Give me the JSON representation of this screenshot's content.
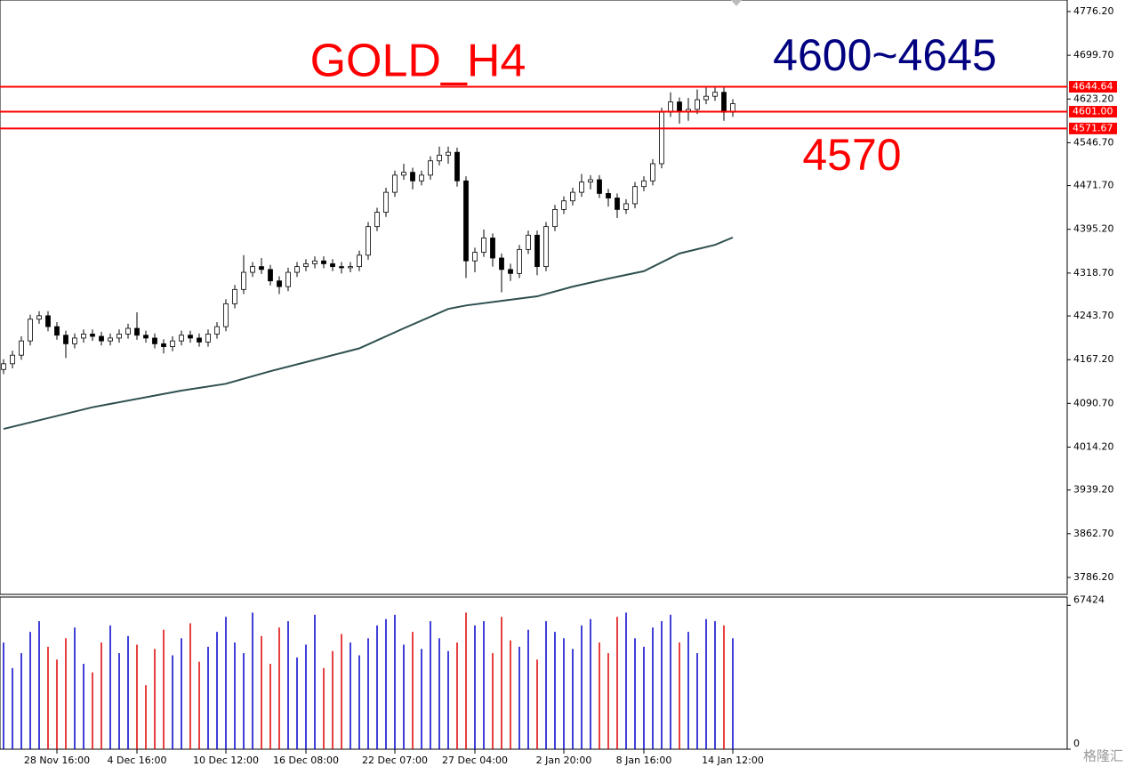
{
  "chart_data": {
    "type": "candlestick",
    "title": "GOLD_H4",
    "annotations": [
      "4600~4645",
      "4570"
    ],
    "watermark": "格隆汇",
    "categories": [
      null,
      null,
      null,
      null,
      null,
      null,
      "28 Nov 16:00",
      null,
      null,
      null,
      null,
      null,
      null,
      null,
      null,
      "4 Dec 16:00",
      null,
      null,
      null,
      null,
      null,
      null,
      null,
      null,
      null,
      "10 Dec 12:00",
      null,
      null,
      null,
      null,
      null,
      null,
      null,
      null,
      "16 Dec 08:00",
      null,
      null,
      null,
      null,
      null,
      null,
      null,
      null,
      null,
      "22 Dec 07:00",
      null,
      null,
      null,
      null,
      null,
      null,
      null,
      null,
      "27 Dec 04:00",
      null,
      null,
      null,
      null,
      null,
      null,
      null,
      null,
      null,
      "2 Jan 20:00",
      null,
      null,
      null,
      null,
      null,
      null,
      null,
      null,
      "8 Jan 16:00",
      null,
      null,
      null,
      null,
      null,
      null,
      null,
      null,
      null,
      "14 Jan 12:00"
    ],
    "open": [
      4150,
      4160,
      4175,
      4200,
      4238,
      4244,
      4225,
      4210,
      4195,
      4205,
      4212,
      4208,
      4200,
      4205,
      4212,
      4222,
      4210,
      4205,
      4195,
      4190,
      4200,
      4210,
      4205,
      4198,
      4212,
      4225,
      4265,
      4290,
      4320,
      4330,
      4325,
      4305,
      4295,
      4320,
      4330,
      4335,
      4340,
      4335,
      4330,
      4328,
      4330,
      4350,
      4400,
      4425,
      4460,
      4490,
      4495,
      4480,
      4490,
      4515,
      4525,
      4530,
      4480,
      4340,
      4355,
      4380,
      4345,
      4325,
      4318,
      4360,
      4385,
      4330,
      4400,
      4430,
      4445,
      4460,
      4478,
      4482,
      4458,
      4450,
      4430,
      4440,
      4470,
      4480,
      4510,
      4600,
      4618,
      4602,
      4605,
      4622,
      4628,
      4635,
      4600
    ],
    "high": [
      4168,
      4183,
      4208,
      4246,
      4252,
      4252,
      4233,
      4218,
      4213,
      4220,
      4220,
      4216,
      4213,
      4220,
      4230,
      4250,
      4218,
      4213,
      4203,
      4208,
      4218,
      4218,
      4213,
      4220,
      4233,
      4273,
      4298,
      4350,
      4338,
      4345,
      4333,
      4313,
      4328,
      4338,
      4343,
      4348,
      4348,
      4343,
      4338,
      4338,
      4358,
      4408,
      4433,
      4468,
      4498,
      4510,
      4503,
      4498,
      4523,
      4540,
      4540,
      4538,
      4488,
      4363,
      4395,
      4388,
      4353,
      4335,
      4368,
      4393,
      4393,
      4408,
      4438,
      4453,
      4468,
      4492,
      4490,
      4490,
      4466,
      4458,
      4448,
      4478,
      4488,
      4518,
      4608,
      4635,
      4626,
      4625,
      4640,
      4645,
      4644,
      4643,
      4623
    ],
    "low": [
      4142,
      4152,
      4167,
      4192,
      4230,
      4217,
      4202,
      4170,
      4187,
      4197,
      4200,
      4192,
      4192,
      4197,
      4204,
      4202,
      4197,
      4187,
      4178,
      4182,
      4192,
      4197,
      4190,
      4190,
      4204,
      4217,
      4257,
      4282,
      4312,
      4317,
      4297,
      4282,
      4287,
      4312,
      4322,
      4327,
      4327,
      4322,
      4318,
      4320,
      4322,
      4342,
      4392,
      4417,
      4452,
      4482,
      4465,
      4472,
      4482,
      4507,
      4510,
      4470,
      4310,
      4320,
      4347,
      4330,
      4285,
      4305,
      4310,
      4352,
      4315,
      4322,
      4392,
      4422,
      4437,
      4452,
      4465,
      4450,
      4435,
      4415,
      4422,
      4432,
      4462,
      4472,
      4502,
      4592,
      4580,
      4585,
      4597,
      4614,
      4620,
      4585,
      4592
    ],
    "close": [
      4160,
      4175,
      4200,
      4238,
      4244,
      4225,
      4210,
      4195,
      4205,
      4212,
      4208,
      4200,
      4205,
      4212,
      4222,
      4210,
      4205,
      4195,
      4190,
      4200,
      4210,
      4205,
      4198,
      4212,
      4225,
      4265,
      4290,
      4320,
      4330,
      4325,
      4305,
      4295,
      4320,
      4330,
      4335,
      4340,
      4335,
      4330,
      4328,
      4330,
      4350,
      4400,
      4425,
      4460,
      4490,
      4495,
      4480,
      4490,
      4515,
      4525,
      4530,
      4480,
      4340,
      4355,
      4380,
      4345,
      4325,
      4318,
      4360,
      4385,
      4330,
      4400,
      4430,
      4445,
      4460,
      4478,
      4482,
      4458,
      4450,
      4430,
      4440,
      4470,
      4480,
      4510,
      4600,
      4618,
      4602,
      4605,
      4622,
      4628,
      4635,
      4600,
      4615
    ],
    "up_fill": "#ffffff",
    "down_fill": "#000000",
    "ylim": [
      3756.6,
      4796.4
    ],
    "yticks": [
      {
        "value": 4776.2,
        "label": "4776.20"
      },
      {
        "value": 4699.7,
        "label": "4699.70"
      },
      {
        "value": 4623.2,
        "label": "4623.20"
      },
      {
        "value": 4546.7,
        "label": "4546.70"
      },
      {
        "value": 4471.7,
        "label": "4471.70"
      },
      {
        "value": 4395.2,
        "label": "4395.20"
      },
      {
        "value": 4318.7,
        "label": "4318.70"
      },
      {
        "value": 4243.7,
        "label": "4243.70"
      },
      {
        "value": 4167.2,
        "label": "4167.20"
      },
      {
        "value": 4090.7,
        "label": "4090.70"
      },
      {
        "value": 4014.2,
        "label": "4014.20"
      },
      {
        "value": 3939.2,
        "label": "3939.20"
      },
      {
        "value": 3862.7,
        "label": "3862.70"
      },
      {
        "value": 3786.2,
        "label": "3786.20"
      }
    ],
    "levels": [
      4644.64,
      {
        "value": 4601,
        "label": "4601.00"
      },
      4571.67
    ],
    "level_color": "#ff0000",
    "ma": {
      "x": [
        0,
        10,
        20,
        25,
        30,
        35,
        40,
        45,
        50,
        52,
        56,
        60,
        64,
        68,
        72,
        76,
        80,
        82
      ],
      "values": [
        4046,
        4084,
        4113,
        4125,
        4147,
        4167,
        4187,
        4222,
        4256,
        4262,
        4270,
        4278,
        4295,
        4309,
        4322,
        4353,
        4368,
        4381
      ],
      "color": "#2f4f4f"
    },
    "volume": {
      "values": [
        50000,
        38000,
        45000,
        55000,
        60000,
        48000,
        42000,
        52000,
        57000,
        40000,
        36000,
        50000,
        58000,
        45000,
        53000,
        49000,
        30000,
        47000,
        56000,
        44000,
        52000,
        59000,
        41000,
        48000,
        55000,
        62000,
        50000,
        45000,
        64000,
        53000,
        40000,
        57000,
        60000,
        43000,
        49000,
        63000,
        38000,
        46000,
        54000,
        50000,
        44000,
        52000,
        58000,
        61000,
        63000,
        49000,
        55000,
        47000,
        60000,
        52000,
        46000,
        50000,
        64000,
        58000,
        60000,
        45000,
        62000,
        51000,
        48000,
        56000,
        42000,
        60000,
        55000,
        52000,
        47000,
        58000,
        61000,
        50000,
        45000,
        62000,
        64000,
        52000,
        48000,
        57000,
        60000,
        63000,
        50000,
        55000,
        45000,
        61000,
        60000,
        58000,
        52000
      ],
      "ylim": [
        0,
        71300
      ],
      "yticks": [
        67424,
        0
      ],
      "up_color": "#0000cc",
      "down_color": "#dd0000"
    }
  }
}
